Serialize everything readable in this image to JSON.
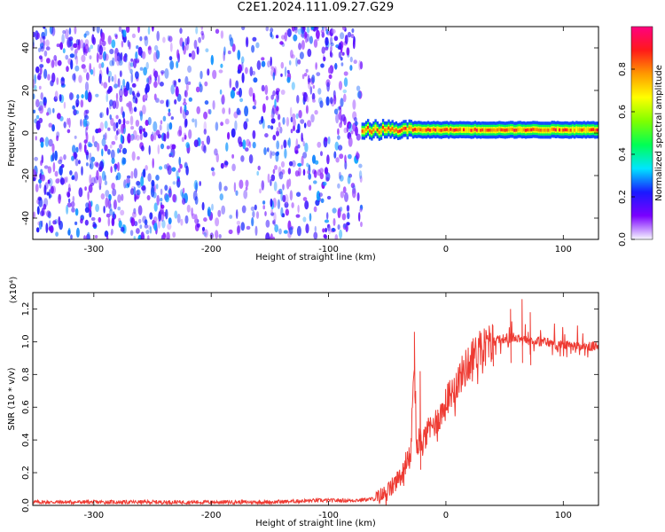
{
  "title": "C2E1.2024.111.09.27.G29",
  "colors": {
    "snr_line": "#ee3b33",
    "frame": "#000000",
    "spectro_base": "#7a00ff"
  },
  "chart_data": [
    {
      "type": "heatmap",
      "name": "spectrogram",
      "xlabel": "Height of straight line (km)",
      "ylabel": "Frequency (Hz)",
      "xlim": [
        -352,
        130
      ],
      "ylim": [
        -50,
        50
      ],
      "xticks": [
        -300,
        -200,
        -100,
        0,
        100
      ],
      "yticks": [
        -40,
        -20,
        0,
        20,
        40
      ],
      "colorbar": {
        "label": "Normalized spectral amplitude",
        "range": [
          0,
          1
        ],
        "ticks": [
          0.0,
          0.2,
          0.4,
          0.6,
          0.8
        ],
        "colormap": [
          "#f7f7ff",
          "#7a00ff",
          "#1a1aff",
          "#00e5ff",
          "#00ff55",
          "#80ff00",
          "#ffff00",
          "#ff9900",
          "#ff1a1a",
          "#ff0080"
        ]
      },
      "noise_region": {
        "x": [
          -352,
          -72
        ],
        "amplitude": [
          0.05,
          0.3
        ]
      },
      "signal_region": {
        "x": [
          -72,
          130
        ],
        "center_frequency": 1.5,
        "bandwidth": 2.5,
        "peak_amplitude": 0.9
      }
    },
    {
      "type": "line",
      "name": "snr",
      "xlabel": "Height of straight line (km)",
      "ylabel": "SNR (10 * v/v)",
      "scale_note": "(x10⁴)",
      "xlim": [
        -352,
        130
      ],
      "ylim": [
        0,
        1.3
      ],
      "xticks": [
        -300,
        -200,
        -100,
        0,
        100
      ],
      "yticks": [
        0.0,
        0.2,
        0.4,
        0.6,
        0.8,
        1.0,
        1.2
      ],
      "series": [
        {
          "x": [
            -352,
            -300,
            -250,
            -200,
            -150,
            -110,
            -100,
            -80,
            -60,
            -50,
            -45,
            -40,
            -35,
            -30,
            -27,
            -25,
            -20,
            -15,
            -10,
            -5,
            0,
            5,
            10,
            15,
            20,
            25,
            30,
            35,
            40,
            45,
            50,
            55,
            60,
            65,
            70,
            75,
            80,
            85,
            90,
            95,
            100,
            105,
            110,
            115,
            120,
            125,
            130
          ],
          "y": [
            0.02,
            0.02,
            0.02,
            0.02,
            0.02,
            0.03,
            0.03,
            0.03,
            0.04,
            0.08,
            0.12,
            0.16,
            0.22,
            0.3,
            0.9,
            0.35,
            0.38,
            0.45,
            0.5,
            0.55,
            0.62,
            0.7,
            0.76,
            0.82,
            0.88,
            0.92,
            0.96,
            0.98,
            1.0,
            1.01,
            1.02,
            1.02,
            1.03,
            1.02,
            1.01,
            1.0,
            1.0,
            1.0,
            0.99,
            0.98,
            0.98,
            0.98,
            0.97,
            0.97,
            0.97,
            0.97,
            0.97
          ],
          "spikes": [
            [
              -27,
              1.06
            ],
            [
              -22,
              0.82
            ],
            [
              55,
              1.2
            ],
            [
              65,
              1.26
            ],
            [
              72,
              1.18
            ],
            [
              40,
              1.1
            ]
          ]
        }
      ]
    }
  ]
}
